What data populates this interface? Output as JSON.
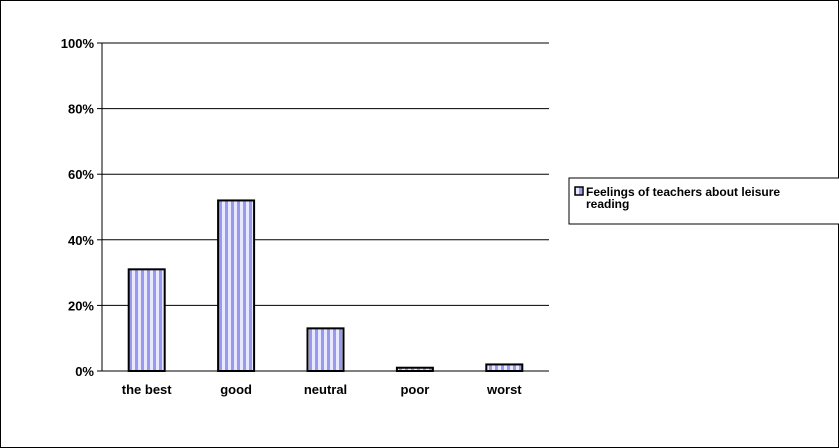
{
  "chart_data": {
    "type": "bar",
    "title": "",
    "xlabel": "",
    "ylabel": "",
    "categories": [
      "the best",
      "good",
      "neutral",
      "poor",
      "worst"
    ],
    "series": [
      {
        "name": "Feelings of teachers about leisure reading",
        "values": [
          31,
          52,
          13,
          1,
          2
        ]
      }
    ],
    "ylim": [
      0,
      100
    ],
    "yticks": [
      "0%",
      "20%",
      "40%",
      "60%",
      "80%",
      "100%"
    ],
    "grid": true,
    "legend_position": "right",
    "legend_lines": [
      "Feelings of teachers about leisure",
      "reading"
    ],
    "colors": {
      "bar_stripe_light": "#e8e8ff",
      "bar_stripe_dark": "#9999ee",
      "bar_outline": "#000000"
    }
  }
}
